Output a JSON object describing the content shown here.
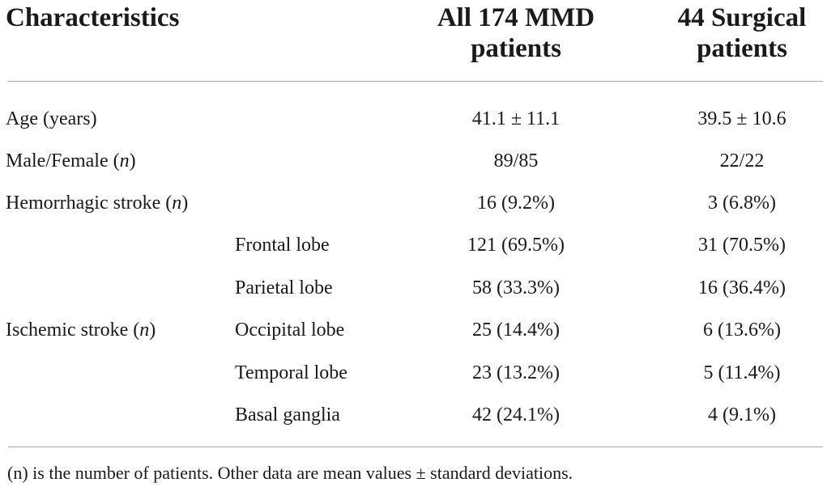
{
  "header": {
    "characteristics": "Characteristics",
    "col1_line1": "All 174 MMD",
    "col1_line2": "patients",
    "col2_line1": "44 Surgical",
    "col2_line2": "patients"
  },
  "rows": [
    {
      "label": "Age (years)",
      "label_n": "",
      "col1": "41.1 ± 11.1",
      "col2": "39.5 ± 10.6"
    },
    {
      "label": "Male/Female (",
      "label_n": "n",
      "label_close": ")",
      "col1": "89/85",
      "col2": "22/22"
    },
    {
      "label": "Hemorrhagic stroke (",
      "label_n": "n",
      "label_close": ")",
      "col1": "16 (9.2%)",
      "col2": "3 (6.8%)"
    }
  ],
  "ischemic": {
    "label": "Ischemic stroke (",
    "label_n": "n",
    "label_close": ")",
    "subrows": [
      {
        "sub": "Frontal lobe",
        "col1": "121 (69.5%)",
        "col2": "31 (70.5%)"
      },
      {
        "sub": "Parietal lobe",
        "col1": "58 (33.3%)",
        "col2": "16 (36.4%)"
      },
      {
        "sub": "Occipital lobe",
        "col1": "25 (14.4%)",
        "col2": "6 (13.6%)"
      },
      {
        "sub": "Temporal lobe",
        "col1": "23 (13.2%)",
        "col2": "5 (11.4%)"
      },
      {
        "sub": "Basal ganglia",
        "col1": "42 (24.1%)",
        "col2": "4 (9.1%)"
      }
    ]
  },
  "footnote": "(n) is the number of patients. Other data are mean values ± standard deviations."
}
